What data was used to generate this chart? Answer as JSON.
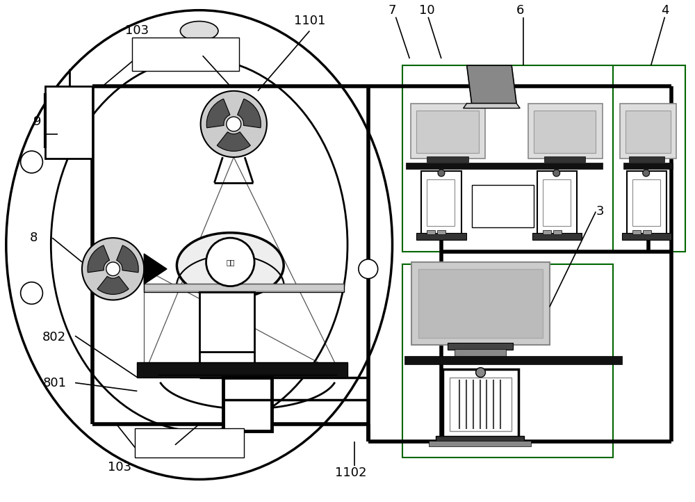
{
  "bg_color": "#ffffff",
  "lc": "#000000",
  "tlw": 4.0,
  "mlw": 2.0,
  "slw": 1.2,
  "fig_width": 10.0,
  "fig_height": 7.22
}
